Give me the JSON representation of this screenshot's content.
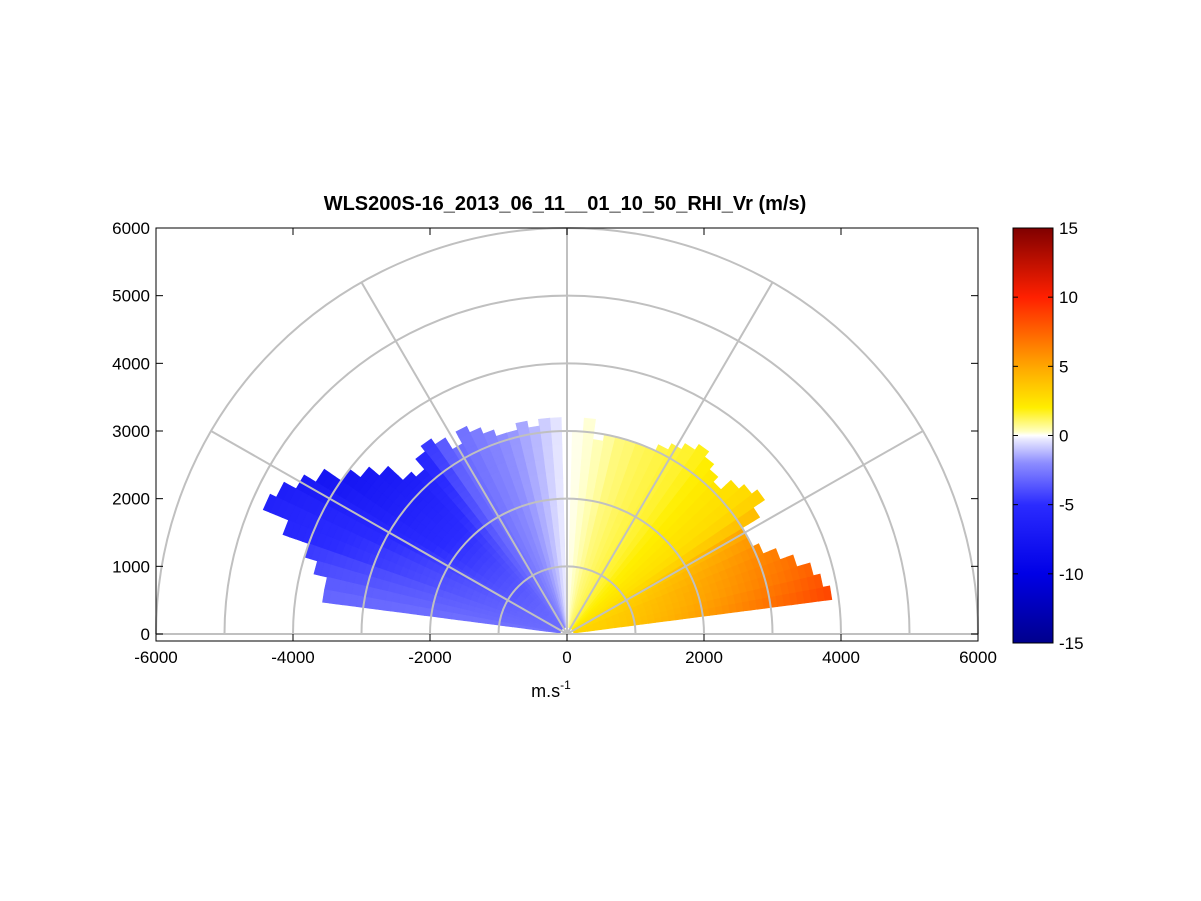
{
  "chart_data": {
    "type": "heatmap",
    "subtype": "polar RHI scan (range-height)",
    "title": "WLS200S-16_2013_06_11__01_10_50_RHI_Vr (m/s)",
    "xlabel": "m.s",
    "xlabel_superscript": "-1",
    "ylabel": "",
    "xlim": [
      -6000,
      6000
    ],
    "ylim": [
      -100,
      6000
    ],
    "x_ticks": [
      -6000,
      -4000,
      -2000,
      0,
      2000,
      4000,
      6000
    ],
    "y_ticks": [
      0,
      1000,
      2000,
      3000,
      4000,
      5000,
      6000
    ],
    "polar_grid": {
      "range_rings": [
        1000,
        2000,
        3000,
        4000,
        5000,
        6000
      ],
      "spoke_angles_deg": [
        0,
        30,
        60,
        90,
        120,
        150,
        180
      ]
    },
    "colorbar": {
      "min": -15,
      "max": 15,
      "ticks": [
        15,
        10,
        5,
        0,
        -5,
        -10,
        -15
      ],
      "colormap": "blue-white-red",
      "stops": [
        {
          "v": -15,
          "color": "#00008c"
        },
        {
          "v": -10,
          "color": "#0000e6"
        },
        {
          "v": -5,
          "color": "#2b2bff"
        },
        {
          "v": -2,
          "color": "#8c8cff"
        },
        {
          "v": -0.3,
          "color": "#e8e8ff"
        },
        {
          "v": 0,
          "color": "#ffffff"
        },
        {
          "v": 0.3,
          "color": "#ffffc0"
        },
        {
          "v": 2,
          "color": "#ffee00"
        },
        {
          "v": 5,
          "color": "#ffa600"
        },
        {
          "v": 10,
          "color": "#ff2000"
        },
        {
          "v": 15,
          "color": "#800000"
        }
      ]
    },
    "scan": {
      "min_range_m": 100,
      "gate_length_m": 100,
      "beams": [
        {
          "elev_deg": 9,
          "max_range_m": 3900,
          "vr_near": 3.0,
          "vr_far": 8.5
        },
        {
          "elev_deg": 12,
          "max_range_m": 3800,
          "vr_near": 3.0,
          "vr_far": 8.0
        },
        {
          "elev_deg": 15,
          "max_range_m": 3700,
          "vr_near": 3.0,
          "vr_far": 7.5
        },
        {
          "elev_deg": 18,
          "max_range_m": 3500,
          "vr_near": 3.0,
          "vr_far": 7.0
        },
        {
          "elev_deg": 21,
          "max_range_m": 3300,
          "vr_near": 3.0,
          "vr_far": 6.5
        },
        {
          "elev_deg": 24,
          "max_range_m": 3100,
          "vr_near": 2.8,
          "vr_far": 6.0
        },
        {
          "elev_deg": 27,
          "max_range_m": 3000,
          "vr_near": 2.8,
          "vr_far": 5.5
        },
        {
          "elev_deg": 30,
          "max_range_m": 3000,
          "vr_near": 2.6,
          "vr_far": 5.0
        },
        {
          "elev_deg": 33,
          "max_range_m": 3300,
          "vr_near": 2.5,
          "vr_far": 4.0
        },
        {
          "elev_deg": 36,
          "max_range_m": 3500,
          "vr_near": 2.4,
          "vr_far": 3.2
        },
        {
          "elev_deg": 39,
          "max_range_m": 3400,
          "vr_near": 2.3,
          "vr_far": 2.8
        },
        {
          "elev_deg": 42,
          "max_range_m": 3300,
          "vr_near": 2.2,
          "vr_far": 2.6
        },
        {
          "elev_deg": 45,
          "max_range_m": 3100,
          "vr_near": 2.0,
          "vr_far": 2.4
        },
        {
          "elev_deg": 48,
          "max_range_m": 3200,
          "vr_near": 1.9,
          "vr_far": 2.2
        },
        {
          "elev_deg": 51,
          "max_range_m": 3300,
          "vr_near": 1.8,
          "vr_far": 2.0
        },
        {
          "elev_deg": 54,
          "max_range_m": 3400,
          "vr_near": 1.6,
          "vr_far": 1.8
        },
        {
          "elev_deg": 57,
          "max_range_m": 3300,
          "vr_near": 1.5,
          "vr_far": 1.6
        },
        {
          "elev_deg": 60,
          "max_range_m": 3200,
          "vr_near": 1.4,
          "vr_far": 1.5
        },
        {
          "elev_deg": 63,
          "max_range_m": 3100,
          "vr_near": 1.3,
          "vr_far": 1.4
        },
        {
          "elev_deg": 66,
          "max_range_m": 3000,
          "vr_near": 1.2,
          "vr_far": 1.3
        },
        {
          "elev_deg": 69,
          "max_range_m": 3000,
          "vr_near": 1.1,
          "vr_far": 1.2
        },
        {
          "elev_deg": 72,
          "max_range_m": 2950,
          "vr_near": 1.0,
          "vr_far": 1.0
        },
        {
          "elev_deg": 75,
          "max_range_m": 3000,
          "vr_near": 0.9,
          "vr_far": 0.9
        },
        {
          "elev_deg": 78,
          "max_range_m": 3000,
          "vr_near": 0.7,
          "vr_far": 0.6
        },
        {
          "elev_deg": 81,
          "max_range_m": 2900,
          "vr_near": 0.5,
          "vr_far": 0.4
        },
        {
          "elev_deg": 84,
          "max_range_m": 3200,
          "vr_near": 0.3,
          "vr_far": 0.2
        },
        {
          "elev_deg": 87,
          "max_range_m": 3000,
          "vr_near": 0.15,
          "vr_far": 0.1
        },
        {
          "elev_deg": 93,
          "max_range_m": 3200,
          "vr_near": -0.3,
          "vr_far": -0.4
        },
        {
          "elev_deg": 96,
          "max_range_m": 3200,
          "vr_near": -0.6,
          "vr_far": -0.8
        },
        {
          "elev_deg": 99,
          "max_range_m": 3100,
          "vr_near": -1.0,
          "vr_far": -1.2
        },
        {
          "elev_deg": 102,
          "max_range_m": 3200,
          "vr_near": -1.3,
          "vr_far": -1.5
        },
        {
          "elev_deg": 105,
          "max_range_m": 3100,
          "vr_near": -1.6,
          "vr_far": -1.8
        },
        {
          "elev_deg": 108,
          "max_range_m": 3100,
          "vr_near": -1.9,
          "vr_far": -2.0
        },
        {
          "elev_deg": 111,
          "max_range_m": 3200,
          "vr_near": -2.1,
          "vr_far": -2.3
        },
        {
          "elev_deg": 114,
          "max_range_m": 3300,
          "vr_near": -2.3,
          "vr_far": -2.5
        },
        {
          "elev_deg": 117,
          "max_range_m": 3400,
          "vr_near": -2.5,
          "vr_far": -2.8
        },
        {
          "elev_deg": 120,
          "max_range_m": 3200,
          "vr_near": -2.7,
          "vr_far": -3.0
        },
        {
          "elev_deg": 123,
          "max_range_m": 3400,
          "vr_near": -2.8,
          "vr_far": -3.5
        },
        {
          "elev_deg": 126,
          "max_range_m": 3500,
          "vr_near": -2.9,
          "vr_far": -4.5
        },
        {
          "elev_deg": 129,
          "max_range_m": 3400,
          "vr_near": -3.0,
          "vr_far": -5.5
        },
        {
          "elev_deg": 132,
          "max_range_m": 3200,
          "vr_near": -3.0,
          "vr_far": -6.0
        },
        {
          "elev_deg": 135,
          "max_range_m": 3300,
          "vr_near": -3.0,
          "vr_far": -6.5
        },
        {
          "elev_deg": 138,
          "max_range_m": 3600,
          "vr_near": -3.0,
          "vr_far": -7.0
        },
        {
          "elev_deg": 141,
          "max_range_m": 3800,
          "vr_near": -3.0,
          "vr_far": -7.2
        },
        {
          "elev_deg": 144,
          "max_range_m": 4000,
          "vr_near": -3.0,
          "vr_far": -7.5
        },
        {
          "elev_deg": 147,
          "max_range_m": 4300,
          "vr_near": -3.0,
          "vr_far": -7.5
        },
        {
          "elev_deg": 150,
          "max_range_m": 4500,
          "vr_near": -3.0,
          "vr_far": -7.0
        },
        {
          "elev_deg": 153,
          "max_range_m": 4700,
          "vr_near": -3.0,
          "vr_far": -6.5
        },
        {
          "elev_deg": 156,
          "max_range_m": 4800,
          "vr_near": -3.0,
          "vr_far": -6.0
        },
        {
          "elev_deg": 159,
          "max_range_m": 4400,
          "vr_near": -3.0,
          "vr_far": -5.5
        },
        {
          "elev_deg": 162,
          "max_range_m": 4000,
          "vr_near": -3.0,
          "vr_far": -4.5
        },
        {
          "elev_deg": 165,
          "max_range_m": 3800,
          "vr_near": -3.0,
          "vr_far": -4.0
        },
        {
          "elev_deg": 168,
          "max_range_m": 3600,
          "vr_near": -3.0,
          "vr_far": -3.5
        },
        {
          "elev_deg": 171,
          "max_range_m": 3600,
          "vr_near": -2.8,
          "vr_far": -3.2
        }
      ]
    }
  }
}
